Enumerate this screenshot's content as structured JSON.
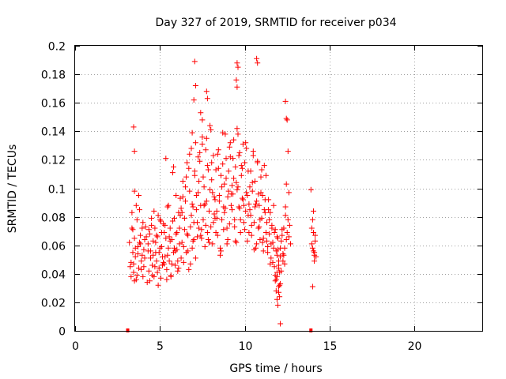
{
  "chart_data": {
    "type": "scatter",
    "title": "Day 327 of 2019, SRMTID for receiver p034",
    "xlabel": "GPS time / hours",
    "ylabel": "SRMTID / TECUs",
    "xlim": [
      0,
      24
    ],
    "ylim": [
      0,
      0.2
    ],
    "xticks": [
      0,
      5,
      10,
      15,
      20
    ],
    "yticks": [
      0,
      0.02,
      0.04,
      0.06,
      0.08,
      0.1,
      0.12,
      0.14,
      0.16,
      0.18,
      0.2
    ],
    "xtick_labels": [
      "0",
      "5",
      "10",
      "15",
      "20"
    ],
    "ytick_labels": [
      "0",
      "0.02",
      "0.04",
      "0.06",
      "0.08",
      "0.1",
      "0.12",
      "0.14",
      "0.16",
      "0.18",
      "0.2"
    ],
    "grid": true,
    "marker": "+",
    "color": "#ff0000",
    "series": [
      {
        "name": "SRMTID",
        "x": [
          3.2,
          3.25,
          3.3,
          3.35,
          3.4,
          3.45,
          3.5,
          3.5,
          3.55,
          3.6,
          3.65,
          3.7,
          3.75,
          3.8,
          3.85,
          3.9,
          3.95,
          4.0,
          4.05,
          4.1,
          3.3,
          3.4,
          3.5,
          3.6,
          3.7,
          3.8,
          3.9,
          4.0,
          4.1,
          4.2,
          3.35,
          3.45,
          3.55,
          3.65,
          3.75,
          3.85,
          3.95,
          4.05,
          4.15,
          4.25,
          4.3,
          4.35,
          4.4,
          4.45,
          4.5,
          4.55,
          4.6,
          4.65,
          4.7,
          4.75,
          4.8,
          4.85,
          4.9,
          4.95,
          5.0,
          5.05,
          5.1,
          5.15,
          5.2,
          5.25,
          4.3,
          4.4,
          4.5,
          4.6,
          4.7,
          4.8,
          4.9,
          5.0,
          5.1,
          5.2,
          4.35,
          4.45,
          4.55,
          4.65,
          4.75,
          4.85,
          4.95,
          5.05,
          5.15,
          5.25,
          5.3,
          5.35,
          5.4,
          5.45,
          5.5,
          5.55,
          5.6,
          5.65,
          5.7,
          5.75,
          5.8,
          5.85,
          5.9,
          5.95,
          6.0,
          6.05,
          6.1,
          6.15,
          6.2,
          6.25,
          5.3,
          5.4,
          5.5,
          5.6,
          5.7,
          5.8,
          5.9,
          6.0,
          6.1,
          6.2,
          5.35,
          5.45,
          5.55,
          5.65,
          5.75,
          5.85,
          5.95,
          6.05,
          6.15,
          6.25,
          6.3,
          6.35,
          6.4,
          6.45,
          6.5,
          6.55,
          6.6,
          6.65,
          6.7,
          6.75,
          6.8,
          6.85,
          6.9,
          6.95,
          7.0,
          7.05,
          7.1,
          7.15,
          7.2,
          7.25,
          6.3,
          6.4,
          6.5,
          6.6,
          6.7,
          6.8,
          6.9,
          7.0,
          7.1,
          7.2,
          6.35,
          6.45,
          6.55,
          6.65,
          6.75,
          6.85,
          6.95,
          7.05,
          7.15,
          7.25,
          7.3,
          7.35,
          7.4,
          7.45,
          7.5,
          7.55,
          7.6,
          7.65,
          7.7,
          7.75,
          7.8,
          7.85,
          7.9,
          7.95,
          8.0,
          8.05,
          8.1,
          8.15,
          8.2,
          8.25,
          7.3,
          7.4,
          7.5,
          7.6,
          7.7,
          7.8,
          7.9,
          8.0,
          8.1,
          8.2,
          7.35,
          7.45,
          7.55,
          7.65,
          7.75,
          7.85,
          7.95,
          8.05,
          8.15,
          8.25,
          8.3,
          8.35,
          8.4,
          8.45,
          8.5,
          8.55,
          8.6,
          8.65,
          8.7,
          8.75,
          8.8,
          8.85,
          8.9,
          8.95,
          9.0,
          9.05,
          9.1,
          9.15,
          9.2,
          9.25,
          8.3,
          8.4,
          8.5,
          8.6,
          8.7,
          8.8,
          8.9,
          9.0,
          9.1,
          9.2,
          8.35,
          8.45,
          8.55,
          8.65,
          8.75,
          8.85,
          8.95,
          9.05,
          9.15,
          9.25,
          9.3,
          9.35,
          9.4,
          9.45,
          9.5,
          9.55,
          9.6,
          9.65,
          9.7,
          9.75,
          9.8,
          9.85,
          9.9,
          9.95,
          10.0,
          10.05,
          10.1,
          10.15,
          10.2,
          10.25,
          9.3,
          9.4,
          9.5,
          9.6,
          9.7,
          9.8,
          9.9,
          10.0,
          10.1,
          10.2,
          9.35,
          9.45,
          9.55,
          9.65,
          9.75,
          9.85,
          9.95,
          10.05,
          10.15,
          10.25,
          10.3,
          10.35,
          10.4,
          10.45,
          10.5,
          10.55,
          10.6,
          10.65,
          10.7,
          10.75,
          10.8,
          10.85,
          10.9,
          10.95,
          11.0,
          11.05,
          11.1,
          11.15,
          11.2,
          11.25,
          10.3,
          10.4,
          10.5,
          10.6,
          10.7,
          10.8,
          10.9,
          11.0,
          11.1,
          11.2,
          10.35,
          10.45,
          10.55,
          10.65,
          10.75,
          10.85,
          10.95,
          11.05,
          11.15,
          11.25,
          11.3,
          11.35,
          11.4,
          11.45,
          11.5,
          11.55,
          11.6,
          11.65,
          11.7,
          11.75,
          11.8,
          11.85,
          11.9,
          11.95,
          12.0,
          12.05,
          12.1,
          12.15,
          12.2,
          12.25,
          11.3,
          11.4,
          11.5,
          11.6,
          11.7,
          11.8,
          11.9,
          12.0,
          12.1,
          12.2,
          11.35,
          11.45,
          11.55,
          11.65,
          11.75,
          11.85,
          11.95,
          12.05,
          12.15,
          12.25,
          12.3,
          12.35,
          12.4,
          12.45,
          12.5,
          12.55,
          12.6,
          12.65,
          12.7,
          12.3,
          12.4,
          12.5,
          12.6,
          12.35,
          12.45,
          12.55,
          11.8,
          11.85,
          11.9,
          11.95,
          12.0,
          12.05,
          12.1,
          11.9,
          12.0,
          12.1,
          13.9,
          13.95,
          14.0,
          14.05,
          14.1,
          14.15,
          14.2,
          13.95,
          14.0,
          14.05,
          14.1,
          14.15,
          14.0,
          14.1,
          14.05,
          3.45,
          3.5,
          9.55,
          9.6,
          10.7,
          10.75,
          7.05,
          7.1,
          12.4,
          12.45,
          6.9,
          7.0,
          7.75,
          7.8,
          9.5,
          9.55,
          7.4,
          7.5,
          11.9,
          12.0
        ],
        "y": [
          0.062,
          0.045,
          0.038,
          0.072,
          0.055,
          0.041,
          0.098,
          0.065,
          0.052,
          0.036,
          0.078,
          0.059,
          0.044,
          0.085,
          0.067,
          0.049,
          0.072,
          0.038,
          0.057,
          0.064,
          0.048,
          0.071,
          0.035,
          0.088,
          0.054,
          0.062,
          0.043,
          0.076,
          0.051,
          0.066,
          0.083,
          0.047,
          0.058,
          0.039,
          0.095,
          0.061,
          0.053,
          0.045,
          0.073,
          0.034,
          0.056,
          0.042,
          0.068,
          0.051,
          0.079,
          0.046,
          0.063,
          0.038,
          0.072,
          0.055,
          0.049,
          0.066,
          0.081,
          0.044,
          0.058,
          0.037,
          0.069,
          0.052,
          0.075,
          0.047,
          0.061,
          0.035,
          0.074,
          0.053,
          0.045,
          0.067,
          0.032,
          0.078,
          0.059,
          0.048,
          0.071,
          0.056,
          0.039,
          0.084,
          0.062,
          0.041,
          0.055,
          0.077,
          0.046,
          0.069,
          0.052,
          0.065,
          0.043,
          0.087,
          0.058,
          0.049,
          0.072,
          0.038,
          0.064,
          0.111,
          0.055,
          0.079,
          0.046,
          0.068,
          0.057,
          0.042,
          0.083,
          0.061,
          0.093,
          0.051,
          0.074,
          0.036,
          0.088,
          0.063,
          0.047,
          0.115,
          0.056,
          0.069,
          0.044,
          0.081,
          0.121,
          0.053,
          0.066,
          0.039,
          0.077,
          0.058,
          0.095,
          0.049,
          0.072,
          0.086,
          0.062,
          0.105,
          0.048,
          0.079,
          0.091,
          0.055,
          0.118,
          0.067,
          0.043,
          0.098,
          0.073,
          0.128,
          0.058,
          0.087,
          0.064,
          0.109,
          0.051,
          0.095,
          0.076,
          0.122,
          0.083,
          0.059,
          0.101,
          0.068,
          0.114,
          0.047,
          0.089,
          0.076,
          0.132,
          0.066,
          0.094,
          0.071,
          0.108,
          0.056,
          0.124,
          0.081,
          0.063,
          0.112,
          0.085,
          0.097,
          0.072,
          0.119,
          0.088,
          0.065,
          0.136,
          0.078,
          0.101,
          0.059,
          0.127,
          0.091,
          0.069,
          0.113,
          0.084,
          0.144,
          0.073,
          0.106,
          0.061,
          0.123,
          0.094,
          0.079,
          0.105,
          0.067,
          0.131,
          0.088,
          0.074,
          0.116,
          0.062,
          0.141,
          0.097,
          0.082,
          0.125,
          0.071,
          0.108,
          0.089,
          0.135,
          0.064,
          0.099,
          0.118,
          0.076,
          0.092,
          0.113,
          0.084,
          0.067,
          0.127,
          0.095,
          0.058,
          0.109,
          0.078,
          0.139,
          0.071,
          0.103,
          0.086,
          0.121,
          0.061,
          0.094,
          0.112,
          0.075,
          0.132,
          0.088,
          0.102,
          0.069,
          0.124,
          0.091,
          0.056,
          0.117,
          0.083,
          0.107,
          0.064,
          0.129,
          0.096,
          0.079,
          0.114,
          0.053,
          0.101,
          0.087,
          0.138,
          0.072,
          0.098,
          0.122,
          0.085,
          0.096,
          0.134,
          0.078,
          0.115,
          0.062,
          0.142,
          0.101,
          0.087,
          0.125,
          0.069,
          0.109,
          0.093,
          0.131,
          0.076,
          0.118,
          0.084,
          0.097,
          0.063,
          0.112,
          0.089,
          0.121,
          0.073,
          0.104,
          0.138,
          0.086,
          0.116,
          0.092,
          0.071,
          0.128,
          0.081,
          0.107,
          0.063,
          0.099,
          0.123,
          0.078,
          0.114,
          0.088,
          0.132,
          0.095,
          0.069,
          0.085,
          0.112,
          0.067,
          0.098,
          0.123,
          0.076,
          0.105,
          0.058,
          0.091,
          0.119,
          0.072,
          0.088,
          0.064,
          0.108,
          0.079,
          0.095,
          0.056,
          0.116,
          0.083,
          0.069,
          0.101,
          0.074,
          0.126,
          0.087,
          0.061,
          0.096,
          0.078,
          0.113,
          0.065,
          0.092,
          0.081,
          0.104,
          0.057,
          0.089,
          0.118,
          0.073,
          0.097,
          0.062,
          0.085,
          0.109,
          0.076,
          0.059,
          0.092,
          0.068,
          0.083,
          0.051,
          0.074,
          0.062,
          0.088,
          0.045,
          0.071,
          0.056,
          0.038,
          0.065,
          0.049,
          0.032,
          0.058,
          0.042,
          0.067,
          0.054,
          0.063,
          0.085,
          0.047,
          0.072,
          0.058,
          0.039,
          0.066,
          0.044,
          0.052,
          0.071,
          0.055,
          0.078,
          0.061,
          0.048,
          0.069,
          0.036,
          0.057,
          0.041,
          0.063,
          0.049,
          0.072,
          0.058,
          0.081,
          0.064,
          0.069,
          0.126,
          0.097,
          0.074,
          0.061,
          0.053,
          0.087,
          0.148,
          0.066,
          0.047,
          0.103,
          0.078,
          0.035,
          0.028,
          0.022,
          0.018,
          0.031,
          0.024,
          0.005,
          0.041,
          0.027,
          0.033,
          0.099,
          0.072,
          0.058,
          0.084,
          0.055,
          0.067,
          0.052,
          0.061,
          0.078,
          0.056,
          0.049,
          0.063,
          0.031,
          0.053,
          0.069,
          0.143,
          0.126,
          0.188,
          0.185,
          0.191,
          0.188,
          0.189,
          0.172,
          0.161,
          0.149,
          0.139,
          0.162,
          0.168,
          0.163,
          0.176,
          0.171,
          0.153,
          0.148,
          0.053,
          0.046
        ]
      }
    ],
    "markers_on_axis": [
      3.1,
      13.9
    ]
  }
}
